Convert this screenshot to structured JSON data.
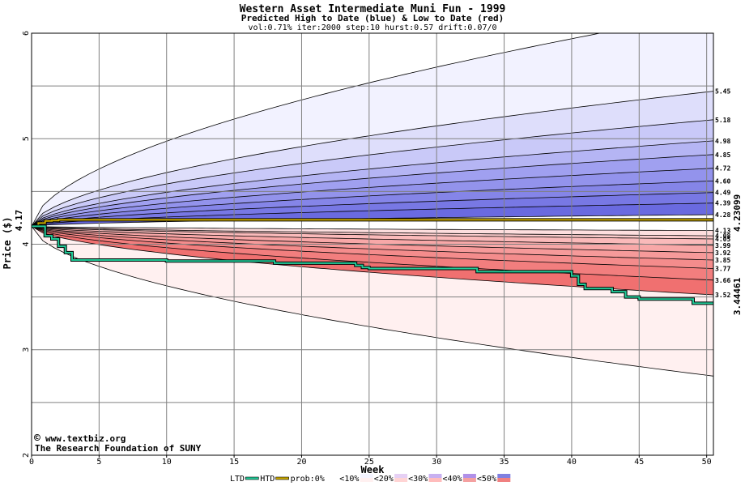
{
  "title": "Western Asset Intermediate Muni Fun - 1999",
  "subtitle": "Predicted High to Date (blue) &  Low to Date (red)",
  "params": "vol:0.71% iter:2000 step:10 hurst:0.57 drift:0.07/0",
  "watermark": {
    "line1": "www.textbiz.org",
    "line2": "The Research Foundation of SUNY",
    "symbol": "©"
  },
  "colors": {
    "high_band_light": "#f2f2ff",
    "high_band_mid": "#a0a0f0",
    "high_band_dark": "#6a6ae0",
    "low_band_light": "#fff0f0",
    "low_band_mid": "#f8a8a8",
    "low_band_dark": "#f07070",
    "htd_line": "#ccaa00",
    "ltd_line": "#22cc99",
    "grid": "#808080",
    "current_label": "#008800"
  },
  "chart_data": {
    "type": "area",
    "xlabel": "Week",
    "ylabel": "Price ($)",
    "xlim": [
      0,
      50.5
    ],
    "ylim": [
      2,
      6
    ],
    "x_ticks": [
      0,
      5,
      10,
      15,
      20,
      25,
      30,
      35,
      40,
      45,
      50
    ],
    "y_ticks": [
      2,
      3,
      4,
      5,
      6
    ],
    "grid": true,
    "start_price": 4.17,
    "start_price_label": "4.17",
    "high_quantiles_end": [
      5.45,
      5.18,
      4.98,
      4.85,
      4.72,
      4.6,
      4.49,
      4.39,
      4.28
    ],
    "high_quantile_labels": [
      "5.45",
      "5.18",
      "4.98",
      "4.85",
      "4.72",
      "4.60",
      "4.49",
      "4.39",
      "4.28"
    ],
    "high_max_end": 6.2,
    "low_quantiles_end": [
      4.13,
      4.08,
      4.05,
      3.99,
      3.92,
      3.85,
      3.77,
      3.66,
      3.52
    ],
    "low_quantile_labels": [
      "4.13",
      "4.08",
      "4.05",
      "3.99",
      "3.92",
      "3.85",
      "3.77",
      "3.66",
      "3.52"
    ],
    "low_min_end": 2.75,
    "htd": {
      "name": "HTD",
      "final_label": "4.23099",
      "x": [
        0,
        0.5,
        1,
        1.5,
        2,
        50.5
      ],
      "y": [
        4.17,
        4.2,
        4.22,
        4.225,
        4.231,
        4.231
      ]
    },
    "ltd": {
      "name": "LTD",
      "final_label": "3.44461",
      "x": [
        0,
        1,
        1.5,
        2,
        2.5,
        3,
        10,
        18,
        18,
        24,
        24.5,
        25,
        33,
        40,
        40.5,
        41,
        43,
        44,
        45,
        49,
        50.5
      ],
      "y": [
        4.17,
        4.08,
        4.05,
        3.98,
        3.92,
        3.85,
        3.84,
        3.83,
        3.82,
        3.8,
        3.78,
        3.77,
        3.74,
        3.7,
        3.62,
        3.58,
        3.55,
        3.5,
        3.48,
        3.44,
        3.44
      ]
    },
    "legend": {
      "items": [
        "LTD",
        "HTD",
        "prob:0%",
        "<10%",
        "<20%",
        "<30%",
        "<40%",
        "<50%"
      ],
      "placement": "bottom"
    }
  }
}
